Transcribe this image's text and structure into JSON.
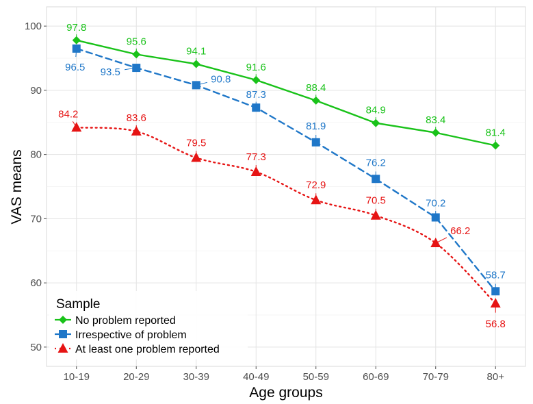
{
  "chart_data": {
    "type": "line",
    "title": "",
    "xlabel": "Age groups",
    "ylabel": "VAS means",
    "categories": [
      "10-19",
      "20-29",
      "30-39",
      "40-49",
      "50-59",
      "60-69",
      "70-79",
      "80+"
    ],
    "ylim": [
      47,
      103
    ],
    "yticks": [
      50,
      60,
      70,
      80,
      90,
      100
    ],
    "grid": true,
    "legend": {
      "title": "Sample",
      "placement": "bottom-left-inside"
    },
    "series": [
      {
        "name": "No problem reported",
        "color": "#19c219",
        "line_style": "solid",
        "marker": "diamond",
        "values": [
          97.8,
          95.6,
          94.1,
          91.6,
          88.4,
          84.9,
          83.4,
          81.4
        ],
        "labels": [
          "97.8",
          "95.6",
          "94.1",
          "91.6",
          "88.4",
          "84.9",
          "83.4",
          "81.4"
        ]
      },
      {
        "name": "Irrespective of problem",
        "color": "#1f77c8",
        "line_style": "dashed",
        "marker": "square",
        "values": [
          96.5,
          93.5,
          90.8,
          87.3,
          81.9,
          76.2,
          70.2,
          58.7
        ],
        "labels": [
          "96.5",
          "93.5",
          "90.8",
          "87.3",
          "81.9",
          "76.2",
          "70.2",
          "58.7"
        ]
      },
      {
        "name": "At least one problem reported",
        "color": "#e61414",
        "line_style": "dotted",
        "marker": "triangle",
        "values": [
          84.2,
          83.6,
          79.5,
          77.3,
          72.9,
          70.5,
          66.2,
          56.8
        ],
        "labels": [
          "84.2",
          "83.6",
          "79.5",
          "77.3",
          "72.9",
          "70.5",
          "66.2",
          "56.8"
        ]
      }
    ]
  }
}
